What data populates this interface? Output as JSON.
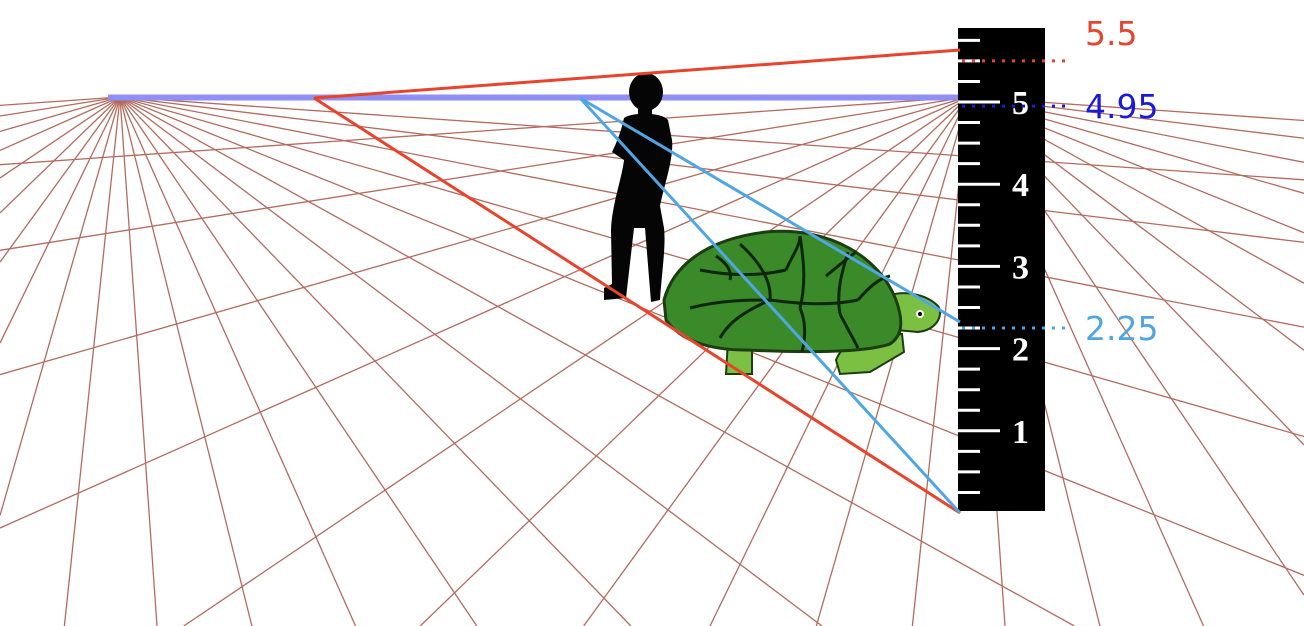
{
  "ruler": {
    "numbers": [
      "1",
      "2",
      "3",
      "4",
      "5"
    ],
    "minor_ticks_per_unit": 4,
    "units_shown": 5.8
  },
  "markers": [
    {
      "label": "5.5",
      "value": 5.5,
      "color": "#e8442c"
    },
    {
      "label": "4.95",
      "value": 4.95,
      "color": "#1a1ad9"
    },
    {
      "label": "2.25",
      "value": 2.25,
      "color": "#4fa6e3"
    }
  ],
  "colors": {
    "grid": "#b36b5e",
    "horizon": "#8f8ff5",
    "person_projection": "#e8442c",
    "tortoise_projection": "#4fa6e3",
    "ruler_background": "#000000",
    "ruler_markings": "#ffffff",
    "silhouette": "#050505",
    "shell": "#3b8a2a",
    "shell_outline": "#1b3d10",
    "skin": "#7cc043"
  },
  "icons": {
    "person": "person-silhouette-icon",
    "tortoise": "tortoise-icon"
  }
}
